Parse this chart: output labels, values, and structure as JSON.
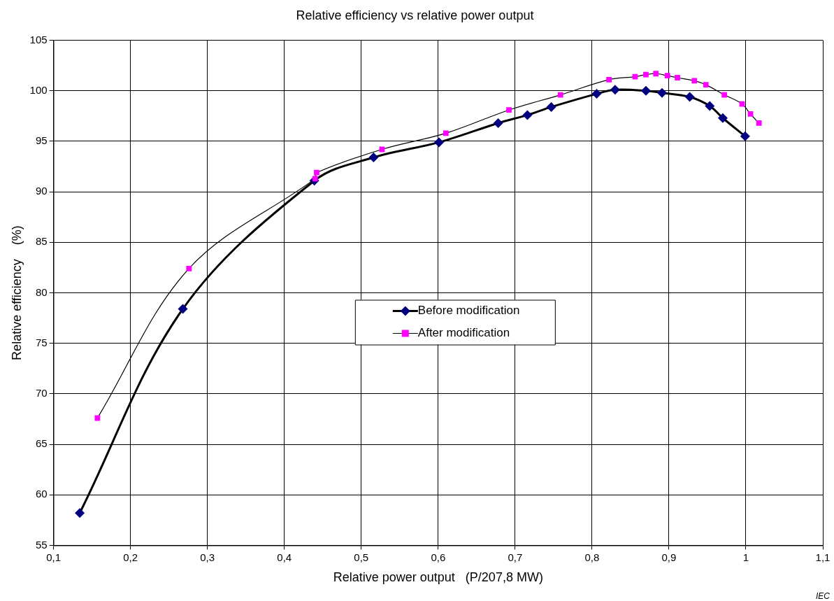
{
  "chart_data": {
    "type": "line",
    "title": "Relative efficiency vs relative power output",
    "xlabel": "Relative power output   (P/207,8 MW)",
    "ylabel": "Relative efficiency    (%)",
    "annotations": [
      "IEC"
    ],
    "xlim": [
      0.1,
      1.1
    ],
    "xticks": [
      {
        "value": 0.1,
        "label": "0,1"
      },
      {
        "value": 0.2,
        "label": "0,2"
      },
      {
        "value": 0.3,
        "label": "0,3"
      },
      {
        "value": 0.4,
        "label": "0,4"
      },
      {
        "value": 0.5,
        "label": "0,5"
      },
      {
        "value": 0.6,
        "label": "0,6"
      },
      {
        "value": 0.7,
        "label": "0,7"
      },
      {
        "value": 0.8,
        "label": "0,8"
      },
      {
        "value": 0.9,
        "label": "0,9"
      },
      {
        "value": 1.0,
        "label": "1"
      },
      {
        "value": 1.1,
        "label": "1,1"
      }
    ],
    "ylim": [
      55,
      105
    ],
    "yticks": [
      55,
      60,
      65,
      70,
      75,
      80,
      85,
      90,
      95,
      100,
      105
    ],
    "grid": true,
    "legend": "center",
    "series": [
      {
        "name": "Before modification",
        "color": "#000080",
        "marker": "diamond",
        "x": [
          0.134,
          0.268,
          0.439,
          0.516,
          0.601,
          0.678,
          0.716,
          0.747,
          0.806,
          0.83,
          0.87,
          0.891,
          0.927,
          0.953,
          0.97,
          0.999
        ],
        "values": [
          58.2,
          78.4,
          91.1,
          93.4,
          94.9,
          96.8,
          97.6,
          98.4,
          99.7,
          100.1,
          100.0,
          99.8,
          99.4,
          98.5,
          97.3,
          95.5
        ]
      },
      {
        "name": "After modification",
        "color": "#ff00ff",
        "marker": "square",
        "x": [
          0.157,
          0.276,
          0.44,
          0.442,
          0.527,
          0.61,
          0.692,
          0.759,
          0.822,
          0.856,
          0.87,
          0.883,
          0.898,
          0.911,
          0.933,
          0.948,
          0.972,
          0.995,
          1.006,
          1.017
        ],
        "values": [
          67.6,
          82.4,
          91.3,
          91.9,
          94.2,
          95.8,
          98.1,
          99.6,
          101.1,
          101.4,
          101.6,
          101.7,
          101.5,
          101.3,
          101.0,
          100.6,
          99.6,
          98.7,
          97.7,
          96.8
        ]
      }
    ]
  }
}
